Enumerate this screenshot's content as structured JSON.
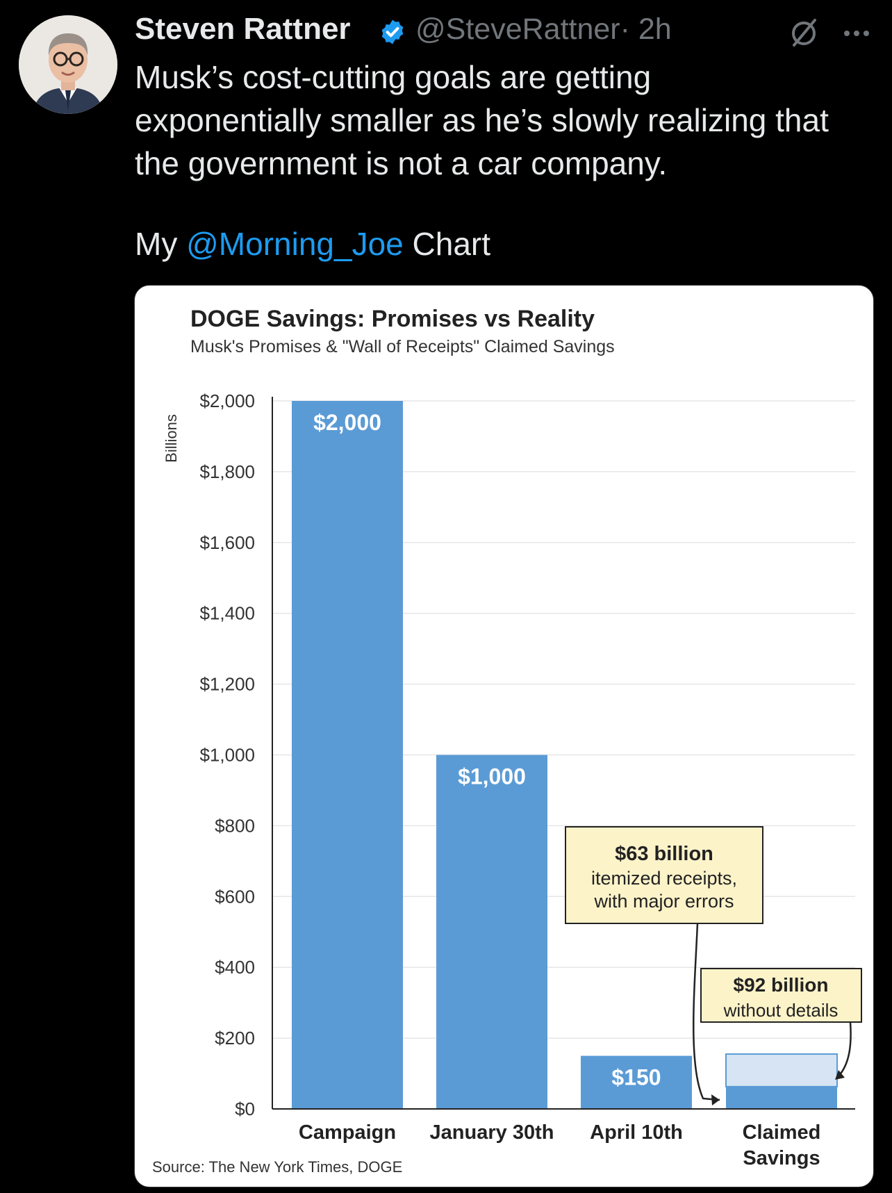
{
  "tweet": {
    "author": {
      "display_name": "Steven Rattner",
      "handle": "@SteveRattner",
      "time": "· 2h",
      "verified": true,
      "avatar_icon": "person-avatar"
    },
    "text_lines": [
      "Musk’s cost-cutting goals are getting",
      "exponentially smaller as he’s slowly realizing that",
      "the government is not a car company."
    ],
    "chart_line": {
      "prefix": "My",
      "mention": "@Morning_Joe",
      "suffix": "Chart"
    },
    "icons": [
      "verified-badge-icon",
      "grok-icon",
      "more-options-icon"
    ],
    "colors": {
      "background": "#000000",
      "text": "#e7e9ea",
      "muted": "#71767b",
      "link": "#1d9bf0"
    }
  },
  "chart_data": {
    "type": "bar",
    "title": "DOGE Savings: Promises vs Reality",
    "subtitle": "Musk's Promises & \"Wall of Receipts\" Claimed Savings",
    "ylabel": "Billions",
    "ylim": [
      0,
      2000
    ],
    "yticks": [
      0,
      200,
      400,
      600,
      800,
      1000,
      1200,
      1400,
      1600,
      1800,
      2000
    ],
    "ytick_labels": [
      "$0",
      "$200",
      "$400",
      "$600",
      "$800",
      "$1,000",
      "$1,200",
      "$1,400",
      "$1,600",
      "$1,800",
      "$2,000"
    ],
    "categories": [
      "Campaign",
      "January 30th",
      "April 10th",
      "Claimed Savings"
    ],
    "category_lines": [
      [
        "Campaign"
      ],
      [
        "January 30th"
      ],
      [
        "April 10th"
      ],
      [
        "Claimed",
        "Savings"
      ]
    ],
    "values": [
      2000,
      1000,
      150,
      155
    ],
    "data_labels": [
      "$2,000",
      "$1,000",
      "$150",
      ""
    ],
    "stacked_last": [
      {
        "name": "itemized",
        "value": 63,
        "color": "#5b9bd5"
      },
      {
        "name": "without details",
        "value": 92,
        "color": "#d6e4f3"
      }
    ],
    "annotations": [
      {
        "bold": "$63 billion",
        "lines": [
          "itemized receipts,",
          "with major errors"
        ]
      },
      {
        "bold": "$92 billion",
        "lines": [
          "without details"
        ]
      }
    ],
    "source": "Source: The New York Times, DOGE",
    "grid": true,
    "colors": {
      "bar": "#5b9bd5",
      "bar_light": "#d6e4f3",
      "annotation_bg": "#fdf3c9"
    }
  }
}
